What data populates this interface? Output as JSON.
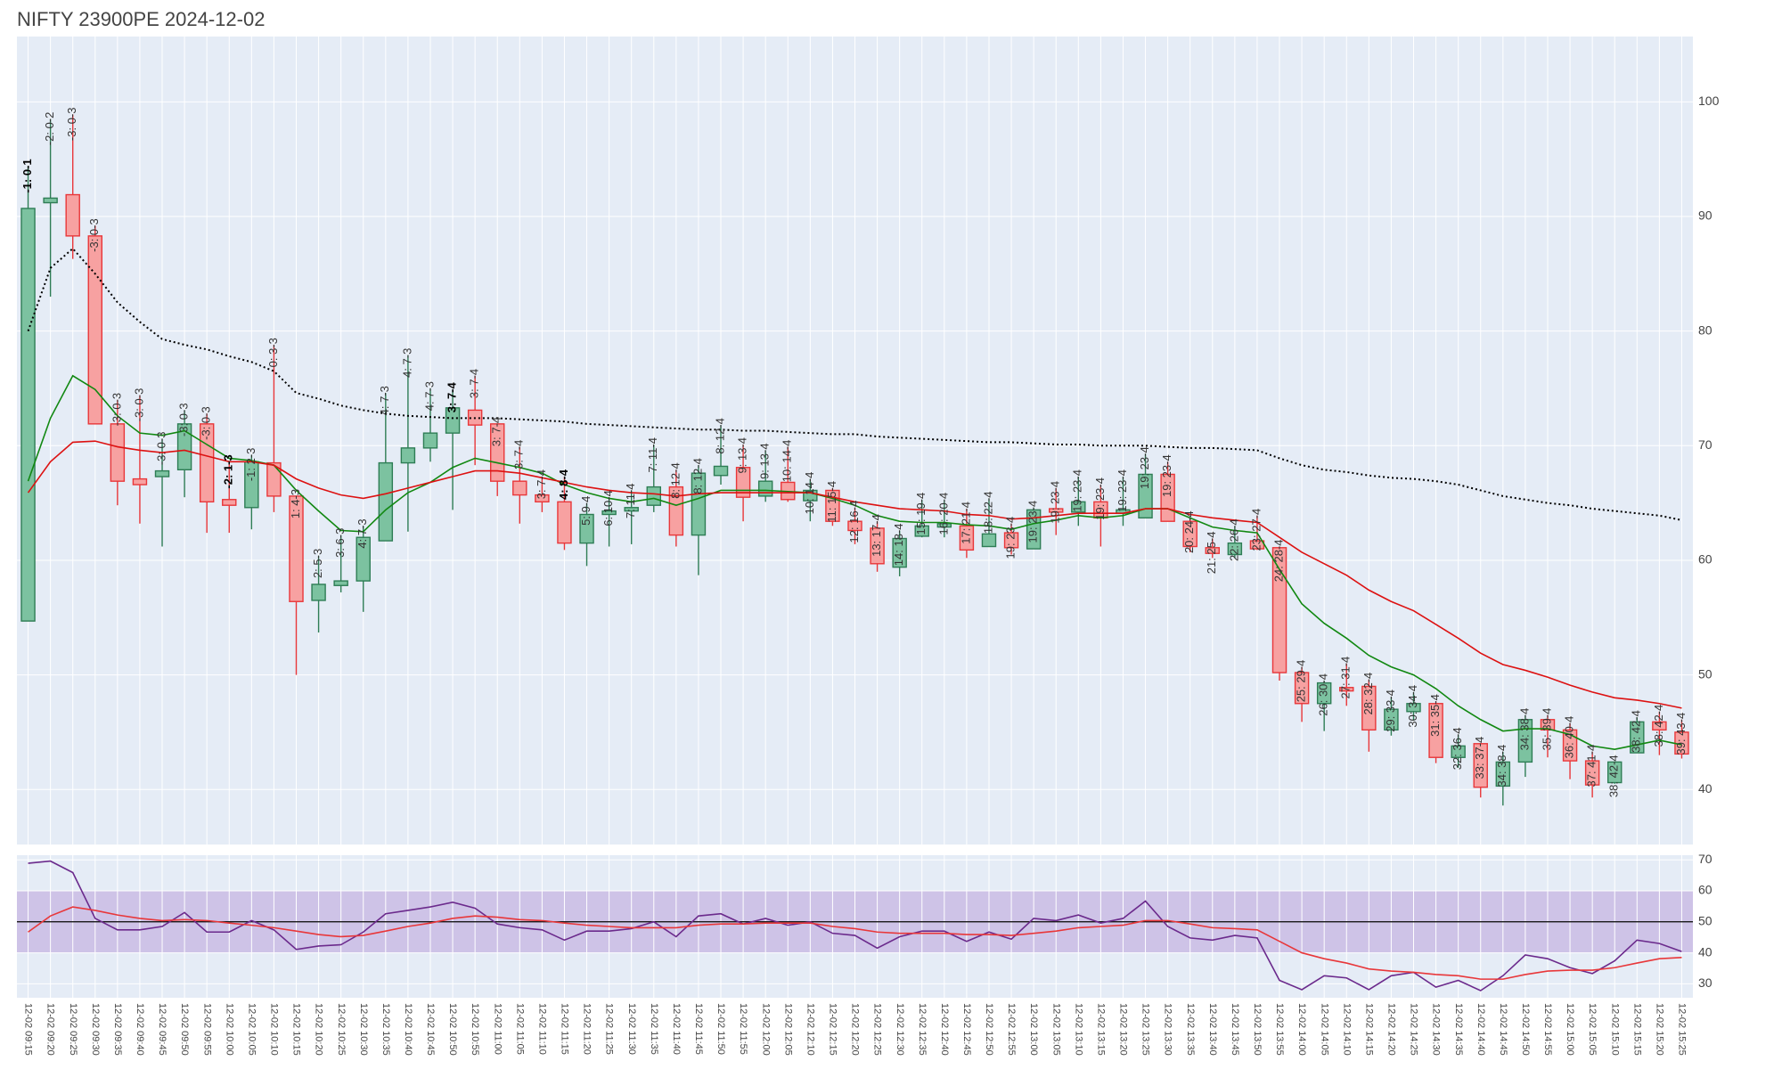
{
  "chart_data": [
    {
      "type": "candlestick",
      "title": "NIFTY 23900PE 2024-12-02",
      "categories": [
        "12-02 09:15",
        "12-02 09:20",
        "12-02 09:25",
        "12-02 09:30",
        "12-02 09:35",
        "12-02 09:40",
        "12-02 09:45",
        "12-02 09:50",
        "12-02 09:55",
        "12-02 10:00",
        "12-02 10:05",
        "12-02 10:10",
        "12-02 10:15",
        "12-02 10:20",
        "12-02 10:25",
        "12-02 10:30",
        "12-02 10:35",
        "12-02 10:40",
        "12-02 10:45",
        "12-02 10:50",
        "12-02 10:55",
        "12-02 11:00",
        "12-02 11:05",
        "12-02 11:10",
        "12-02 11:15",
        "12-02 11:20",
        "12-02 11:25",
        "12-02 11:30",
        "12-02 11:35",
        "12-02 11:40",
        "12-02 11:45",
        "12-02 11:50",
        "12-02 11:55",
        "12-02 12:00",
        "12-02 12:05",
        "12-02 12:10",
        "12-02 12:15",
        "12-02 12:20",
        "12-02 12:25",
        "12-02 12:30",
        "12-02 12:35",
        "12-02 12:40",
        "12-02 12:45",
        "12-02 12:50",
        "12-02 12:55",
        "12-02 13:00",
        "12-02 13:05",
        "12-02 13:10",
        "12-02 13:15",
        "12-02 13:20",
        "12-02 13:25",
        "12-02 13:30",
        "12-02 13:35",
        "12-02 13:40",
        "12-02 13:45",
        "12-02 13:50",
        "12-02 13:55",
        "12-02 14:00",
        "12-02 14:05",
        "12-02 14:10",
        "12-02 14:15",
        "12-02 14:20",
        "12-02 14:25",
        "12-02 14:30",
        "12-02 14:35",
        "12-02 14:40",
        "12-02 14:45",
        "12-02 14:50",
        "12-02 14:55",
        "12-02 15:00",
        "12-02 15:05",
        "12-02 15:10",
        "12-02 15:15",
        "12-02 15:20",
        "12-02 15:25"
      ],
      "open": [
        54.7,
        91.2,
        91.9,
        88.3,
        71.9,
        67.1,
        67.3,
        67.9,
        71.9,
        65.3,
        64.6,
        68.5,
        65.6,
        56.5,
        57.8,
        58.2,
        61.7,
        68.5,
        69.8,
        71.1,
        73.1,
        71.9,
        66.9,
        65.7,
        65.1,
        61.5,
        64,
        64.3,
        64.8,
        66.4,
        62.2,
        67.4,
        68.1,
        65.6,
        66.8,
        65.2,
        66.1,
        63.4,
        62.8,
        59.4,
        62.1,
        62.9,
        63,
        61.2,
        62.4,
        61,
        64.5,
        64.2,
        65.1,
        64.1,
        63.7,
        67.5,
        63.4,
        61.1,
        60.5,
        61.7,
        61.1,
        50.2,
        47.5,
        48.9,
        49,
        45.2,
        46.8,
        47.5,
        42.8,
        44,
        40.3,
        42.4,
        46.1,
        45.2,
        42.5,
        40.6,
        43.2,
        45.9,
        45
      ],
      "high": [
        94.4,
        98.5,
        98.9,
        89.2,
        74,
        74.4,
        70.6,
        73.1,
        72.8,
        68.6,
        69.2,
        78.8,
        65.6,
        60.4,
        62.2,
        63,
        74.6,
        77.9,
        75,
        74.9,
        76.1,
        71.9,
        69.9,
        67.3,
        67.3,
        65,
        65.5,
        66.1,
        70.1,
        67.9,
        68.3,
        71.8,
        70.1,
        69.6,
        69.9,
        67.1,
        66.3,
        64.6,
        63.4,
        62.6,
        65.3,
        65.3,
        64.5,
        65.4,
        63.2,
        64.6,
        66.3,
        67.3,
        66.6,
        67.3,
        69.3,
        68.6,
        63.7,
        61.9,
        63,
        63.9,
        61.2,
        50.7,
        49.5,
        51,
        49.6,
        48.1,
        48.5,
        47.7,
        44.8,
        44,
        43.3,
        46.5,
        46.5,
        45.8,
        43.3,
        42.4,
        46.3,
        46.8,
        46.1
      ],
      "low": [
        54.7,
        83,
        86.3,
        71.9,
        64.8,
        63.2,
        61.2,
        65.5,
        62.4,
        62.4,
        62.7,
        64.2,
        50,
        53.7,
        57.2,
        55.5,
        61.7,
        62.5,
        68.6,
        64.4,
        68.3,
        65.6,
        63.2,
        64.2,
        60.9,
        59.5,
        61.2,
        61.4,
        64.2,
        61.2,
        58.7,
        66.6,
        63.4,
        65.1,
        65.1,
        63.4,
        63,
        61.4,
        59,
        58.6,
        62,
        62,
        60.2,
        61.2,
        60.5,
        61,
        62.2,
        63,
        61.2,
        63,
        63.7,
        63.4,
        60.7,
        60.2,
        60.2,
        60.9,
        49.5,
        45.9,
        45.1,
        47.3,
        43.3,
        44.7,
        46,
        42.3,
        41.9,
        39.3,
        38.6,
        41.1,
        42.8,
        40.9,
        39.3,
        40.5,
        43.2,
        43,
        42.7
      ],
      "close": [
        90.7,
        91.6,
        88.3,
        71.9,
        66.9,
        66.6,
        67.8,
        71.9,
        65.1,
        64.8,
        68.6,
        65.6,
        56.4,
        57.9,
        58.2,
        62,
        68.5,
        69.8,
        71.1,
        73.3,
        71.8,
        66.9,
        65.7,
        65.1,
        61.5,
        64,
        64.3,
        64.6,
        66.4,
        62.2,
        67.6,
        68.2,
        65.5,
        66.9,
        65.3,
        66.1,
        63.4,
        62.6,
        59.7,
        61.9,
        63,
        63.2,
        60.9,
        62.3,
        61.1,
        64.4,
        64.2,
        65.1,
        63.7,
        64.4,
        67.5,
        63.4,
        61.2,
        60.6,
        61.5,
        61,
        50.2,
        47.5,
        49.3,
        48.6,
        45.2,
        47,
        47.5,
        42.8,
        43.8,
        40.2,
        42.4,
        46.1,
        45.2,
        42.5,
        40.4,
        42.4,
        45.9,
        45.2,
        43.1
      ],
      "increasing_color": "#2e7d55",
      "increasing_fill": "#7cc2a0",
      "decreasing_color": "#e8373a",
      "decreasing_fill": "#f7a1a1",
      "lines": [
        {
          "color": "#118811",
          "values": [
            66.9,
            72.4,
            76.1,
            74.9,
            72.6,
            71.1,
            70.9,
            71.3,
            70.1,
            68.9,
            68.7,
            68.3,
            66.1,
            64.3,
            62.6,
            62.5,
            64.4,
            65.9,
            66.8,
            68.1,
            68.9,
            68.5,
            68.1,
            67.6,
            66.6,
            65.9,
            65.4,
            65.1,
            65.4,
            64.8,
            65.4,
            66.1,
            66.1,
            66.1,
            66,
            65.9,
            65.4,
            64.8,
            63.9,
            63.4,
            63.3,
            63.3,
            63.1,
            63,
            62.7,
            63.2,
            63.5,
            63.9,
            63.7,
            63.9,
            64.5,
            64.5,
            63.7,
            62.9,
            62.6,
            62.4,
            59.2,
            56.2,
            54.5,
            53.2,
            51.7,
            50.7,
            50,
            48.8,
            47.3,
            46.1,
            45.1,
            45.3,
            45.3,
            44.8,
            43.8,
            43.5,
            43.9,
            44.3,
            43.9
          ]
        },
        {
          "color": "#dd1111",
          "values": [
            65.9,
            68.6,
            70.3,
            70.4,
            69.9,
            69.6,
            69.4,
            69.6,
            69.1,
            68.6,
            68.6,
            68.3,
            67.1,
            66.3,
            65.7,
            65.4,
            65.8,
            66.3,
            66.8,
            67.3,
            67.8,
            67.8,
            67.6,
            67.2,
            66.8,
            66.4,
            66.1,
            65.9,
            65.8,
            65.6,
            65.8,
            65.9,
            65.9,
            65.9,
            65.9,
            65.9,
            65.5,
            65.1,
            64.8,
            64.5,
            64.4,
            64.3,
            64,
            63.9,
            63.6,
            63.7,
            63.9,
            64.1,
            64.1,
            64.1,
            64.5,
            64.5,
            64,
            63.7,
            63.5,
            63.3,
            62,
            60.7,
            59.7,
            58.7,
            57.4,
            56.4,
            55.6,
            54.4,
            53.2,
            51.9,
            50.9,
            50.4,
            49.8,
            49.1,
            48.5,
            48,
            47.8,
            47.5,
            47.1
          ]
        },
        {
          "color": "#000000",
          "dash": "dotted",
          "values": [
            80,
            85.5,
            87.2,
            85,
            82.5,
            80.8,
            79.3,
            78.8,
            78.4,
            77.8,
            77.3,
            76.5,
            74.6,
            74.1,
            73.5,
            73.1,
            72.8,
            72.6,
            72.5,
            72.4,
            72.4,
            72.4,
            72.3,
            72.2,
            72.1,
            71.9,
            71.8,
            71.7,
            71.6,
            71.5,
            71.4,
            71.4,
            71.3,
            71.3,
            71.2,
            71.1,
            71,
            71,
            70.8,
            70.7,
            70.6,
            70.5,
            70.4,
            70.3,
            70.3,
            70.2,
            70.1,
            70.1,
            70,
            70,
            70,
            69.9,
            69.8,
            69.8,
            69.7,
            69.6,
            68.9,
            68.3,
            67.9,
            67.7,
            67.4,
            67.2,
            67.1,
            66.9,
            66.6,
            66.1,
            65.6,
            65.3,
            65,
            64.8,
            64.5,
            64.3,
            64.1,
            63.9,
            63.5
          ]
        }
      ],
      "annotations": [
        {
          "text": "-1: 0-1",
          "bold": true
        },
        {
          "text": "-2: 0-2"
        },
        {
          "text": "-3: 0-3"
        },
        {
          "text": "-3: 0-3"
        },
        {
          "text": "-3: 0-3"
        },
        {
          "text": "-3: 0-3"
        },
        {
          "text": "-3: 0-3"
        },
        {
          "text": "-3: 0-3"
        },
        {
          "text": "-3: 0-3"
        },
        {
          "text": "-2: 1-3",
          "bold": true
        },
        {
          "text": "-1: 2-3"
        },
        {
          "text": "0: 3-3"
        },
        {
          "text": "1: 4-3"
        },
        {
          "text": "2: 5-3"
        },
        {
          "text": "3: 6-3"
        },
        {
          "text": "4: 7-3"
        },
        {
          "text": "4: 7-3"
        },
        {
          "text": "4: 7-3"
        },
        {
          "text": "4: 7-3"
        },
        {
          "text": "3: 7-4",
          "bold": true
        },
        {
          "text": "3: 7-4"
        },
        {
          "text": "3: 7-4"
        },
        {
          "text": "3: 7-4"
        },
        {
          "text": "3: 7-4"
        },
        {
          "text": "4: 8-4",
          "bold": true
        },
        {
          "text": "5: 9-4"
        },
        {
          "text": "6: 10-4"
        },
        {
          "text": "7: 11-4"
        },
        {
          "text": "7: 11-4"
        },
        {
          "text": "8: 12-4"
        },
        {
          "text": "8: 12-4"
        },
        {
          "text": "8: 12-4"
        },
        {
          "text": "9: 13-4"
        },
        {
          "text": "9: 13-4"
        },
        {
          "text": "10: 14-4"
        },
        {
          "text": "10: 14-4"
        },
        {
          "text": "11: 15-4"
        },
        {
          "text": "12: 16-4"
        },
        {
          "text": "13: 17-4"
        },
        {
          "text": "14: 18-4"
        },
        {
          "text": "15: 19-4"
        },
        {
          "text": "16: 20-4"
        },
        {
          "text": "17: 21-4"
        },
        {
          "text": "18: 22-4"
        },
        {
          "text": "19: 23-4"
        },
        {
          "text": "19: 23-4"
        },
        {
          "text": "19: 23-4"
        },
        {
          "text": "19: 23-4"
        },
        {
          "text": "19: 23-4"
        },
        {
          "text": "19: 23-4"
        },
        {
          "text": "19: 23-4"
        },
        {
          "text": "19: 23-4"
        },
        {
          "text": "20: 24-4"
        },
        {
          "text": "21: 25-4"
        },
        {
          "text": "22: 26-4"
        },
        {
          "text": "23: 27-4"
        },
        {
          "text": "24: 28-4"
        },
        {
          "text": "25: 29-4"
        },
        {
          "text": "26: 30-4"
        },
        {
          "text": "27: 31-4"
        },
        {
          "text": "28: 32-4"
        },
        {
          "text": "29: 33-4"
        },
        {
          "text": "30: 34-4"
        },
        {
          "text": "31: 35-4"
        },
        {
          "text": "32: 36-4"
        },
        {
          "text": "33: 37-4"
        },
        {
          "text": "34: 38-4"
        },
        {
          "text": "34: 38-4"
        },
        {
          "text": "35: 39-4"
        },
        {
          "text": "36: 40-4"
        },
        {
          "text": "37: 41-4"
        },
        {
          "text": "38: 42-4"
        },
        {
          "text": "38: 42-4"
        },
        {
          "text": "38: 42-4"
        },
        {
          "text": "39: 43-4"
        }
      ],
      "ylim": [
        35.2,
        105.7
      ],
      "yticks": [
        40,
        50,
        60,
        70,
        80,
        90,
        100
      ],
      "grid": true
    },
    {
      "type": "line",
      "series": [
        {
          "color": "#6b2a8c",
          "values": [
            68.9,
            69.6,
            65.9,
            51.1,
            47.4,
            47.4,
            48.5,
            53,
            46.7,
            46.7,
            50.4,
            47.4,
            41.1,
            42.2,
            42.6,
            46.7,
            52.6,
            53.7,
            54.8,
            56.3,
            54.4,
            49.3,
            48.1,
            47.4,
            44.1,
            47,
            47,
            47.8,
            50,
            45.2,
            51.9,
            52.6,
            49.3,
            51.1,
            48.9,
            50,
            46.3,
            45.6,
            41.5,
            45.2,
            47,
            47,
            43.7,
            46.7,
            44.4,
            51.1,
            50.4,
            52.2,
            49.6,
            51.1,
            56.7,
            48.5,
            44.8,
            44.1,
            45.6,
            44.8,
            31.1,
            28.1,
            32.6,
            31.9,
            28.1,
            32.6,
            33.7,
            28.9,
            31.1,
            27.8,
            32.6,
            39.3,
            38.1,
            35.2,
            33.3,
            37.4,
            44.1,
            43,
            40.4
          ]
        },
        {
          "color": "#e8373a",
          "values": [
            46.7,
            51.9,
            54.8,
            53.7,
            52.2,
            51.1,
            50.4,
            50.7,
            50.4,
            49.6,
            48.9,
            48.1,
            47,
            45.9,
            45.2,
            45.6,
            47,
            48.5,
            49.6,
            51.1,
            51.9,
            51.5,
            50.7,
            50.4,
            49.6,
            48.9,
            48.5,
            48.1,
            48.1,
            48.1,
            48.9,
            49.3,
            49.3,
            49.6,
            49.6,
            49.6,
            48.5,
            47.8,
            46.7,
            46.3,
            46.3,
            46.3,
            45.9,
            45.9,
            45.6,
            46.3,
            47,
            48.1,
            48.5,
            48.9,
            50.4,
            50.4,
            49.3,
            48.1,
            47.8,
            47.4,
            43.7,
            40,
            38.1,
            36.7,
            34.8,
            34.1,
            33.7,
            33,
            32.6,
            31.5,
            31.5,
            33,
            34.1,
            34.4,
            34.4,
            35.2,
            36.7,
            38.1,
            38.5
          ]
        }
      ],
      "band": [
        40,
        60
      ],
      "band_color": "rgba(160,110,200,0.32)",
      "hline": 50,
      "hline_color": "#000000",
      "ylim": [
        25.5,
        71.5
      ],
      "yticks": [
        30,
        40,
        50,
        60,
        70
      ],
      "grid": true
    }
  ]
}
